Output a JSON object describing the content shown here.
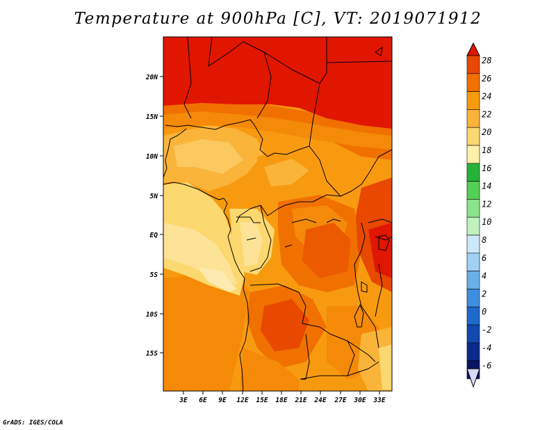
{
  "title": "Temperature at 900hPa [C], VT: 2019071912",
  "footer": "GrADS: IGES/COLA",
  "map": {
    "lat_range": [
      -20,
      25
    ],
    "lon_range": [
      0,
      35
    ],
    "lat_ticks": [
      "20N",
      "15N",
      "10N",
      "5N",
      "EQ",
      "5S",
      "10S",
      "15S"
    ],
    "lon_ticks": [
      "3E",
      "6E",
      "9E",
      "12E",
      "15E",
      "18E",
      "21E",
      "24E",
      "27E",
      "30E",
      "33E"
    ]
  },
  "colorbar": {
    "levels": [
      "28",
      "26",
      "24",
      "22",
      "20",
      "18",
      "16",
      "14",
      "12",
      "10",
      "8",
      "6",
      "4",
      "2",
      "0",
      "-2",
      "-4",
      "-6"
    ],
    "colors": [
      "#e01600",
      "#e84800",
      "#f07000",
      "#f89a10",
      "#fab43a",
      "#fcd870",
      "#fdf0a8",
      "#27b33a",
      "#55cf55",
      "#8be38b",
      "#c0f2c0",
      "#cde9f9",
      "#9fd1f4",
      "#6cb0ea",
      "#3f8fe0",
      "#1f69cd",
      "#1249ae",
      "#0b2b8a",
      "#081464",
      "#d8d8f8"
    ]
  }
}
